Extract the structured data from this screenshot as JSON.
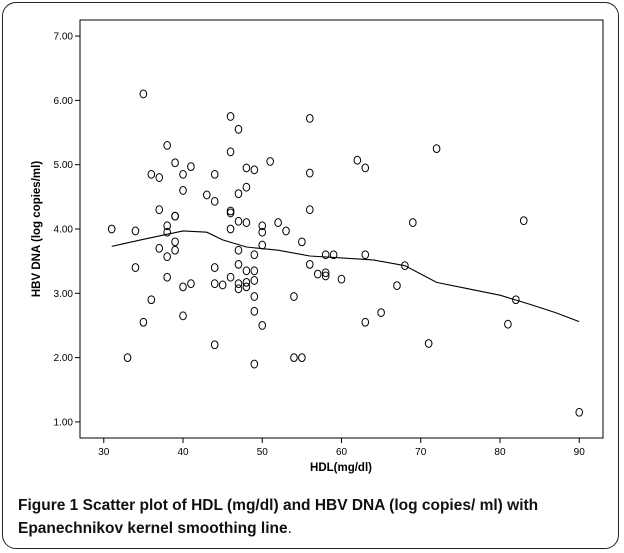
{
  "caption": {
    "label": "Figure 1",
    "text": "Scatter plot of HDL (mg/dl) and HBV DNA (log copies/ ml) with Epanechnikov kernel smoothing line",
    "end": "."
  },
  "chart_data": {
    "type": "scatter",
    "title": "",
    "xlabel": "HDL(mg/dl)",
    "ylabel": "HBV DNA (log copies/ml)",
    "xlim": [
      27,
      93
    ],
    "ylim": [
      0.75,
      7.25
    ],
    "x_ticks": [
      "30",
      "40",
      "50",
      "60",
      "70",
      "80",
      "90"
    ],
    "y_ticks": [
      "1.00",
      "2.00",
      "3.00",
      "4.00",
      "5.00",
      "6.00",
      "7.00"
    ],
    "grid": false,
    "points": [
      [
        31,
        4.0
      ],
      [
        33,
        2.0
      ],
      [
        34,
        3.4
      ],
      [
        34,
        3.97
      ],
      [
        35,
        2.55
      ],
      [
        35,
        6.1
      ],
      [
        36,
        2.9
      ],
      [
        36,
        4.85
      ],
      [
        37,
        3.7
      ],
      [
        37,
        4.3
      ],
      [
        37,
        4.8
      ],
      [
        38,
        3.25
      ],
      [
        38,
        3.57
      ],
      [
        38,
        3.95
      ],
      [
        38,
        4.05
      ],
      [
        38,
        5.3
      ],
      [
        39,
        3.67
      ],
      [
        39,
        3.8
      ],
      [
        39,
        4.2
      ],
      [
        39,
        4.2
      ],
      [
        39,
        5.03
      ],
      [
        40,
        2.65
      ],
      [
        40,
        3.1
      ],
      [
        40,
        4.6
      ],
      [
        40,
        4.85
      ],
      [
        41,
        3.15
      ],
      [
        41,
        4.97
      ],
      [
        43,
        4.53
      ],
      [
        44,
        2.2
      ],
      [
        44,
        3.15
      ],
      [
        44,
        3.4
      ],
      [
        44,
        4.43
      ],
      [
        44,
        4.85
      ],
      [
        45,
        3.13
      ],
      [
        46,
        3.25
      ],
      [
        46,
        4.0
      ],
      [
        46,
        4.25
      ],
      [
        46,
        4.28
      ],
      [
        46,
        5.2
      ],
      [
        46,
        5.75
      ],
      [
        47,
        3.07
      ],
      [
        47,
        3.15
      ],
      [
        47,
        3.45
      ],
      [
        47,
        3.67
      ],
      [
        47,
        4.12
      ],
      [
        47,
        4.55
      ],
      [
        47,
        5.55
      ],
      [
        48,
        3.1
      ],
      [
        48,
        3.17
      ],
      [
        48,
        3.35
      ],
      [
        48,
        4.1
      ],
      [
        48,
        4.65
      ],
      [
        48,
        4.95
      ],
      [
        49,
        1.9
      ],
      [
        49,
        2.72
      ],
      [
        49,
        2.95
      ],
      [
        49,
        3.2
      ],
      [
        49,
        3.35
      ],
      [
        49,
        3.6
      ],
      [
        49,
        4.92
      ],
      [
        50,
        2.5
      ],
      [
        50,
        3.75
      ],
      [
        50,
        3.95
      ],
      [
        50,
        4.05
      ],
      [
        51,
        5.05
      ],
      [
        52,
        4.1
      ],
      [
        53,
        3.97
      ],
      [
        54,
        2.0
      ],
      [
        54,
        2.95
      ],
      [
        55,
        2.0
      ],
      [
        55,
        3.8
      ],
      [
        56,
        3.45
      ],
      [
        56,
        4.3
      ],
      [
        56,
        4.87
      ],
      [
        56,
        5.72
      ],
      [
        57,
        3.3
      ],
      [
        58,
        3.27
      ],
      [
        58,
        3.32
      ],
      [
        58,
        3.6
      ],
      [
        59,
        3.6
      ],
      [
        60,
        3.22
      ],
      [
        62,
        5.07
      ],
      [
        63,
        2.55
      ],
      [
        63,
        3.6
      ],
      [
        63,
        4.95
      ],
      [
        65,
        2.7
      ],
      [
        67,
        3.12
      ],
      [
        68,
        3.43
      ],
      [
        69,
        4.1
      ],
      [
        71,
        2.22
      ],
      [
        72,
        5.25
      ],
      [
        81,
        2.52
      ],
      [
        82,
        2.9
      ],
      [
        83,
        4.13
      ],
      [
        90,
        1.15
      ]
    ],
    "smoothing_line": {
      "method": "Epanechnikov kernel",
      "x": [
        31,
        35,
        40,
        43,
        45,
        48,
        52,
        56,
        60,
        64,
        68,
        72,
        76,
        80,
        84,
        87,
        90
      ],
      "y": [
        3.73,
        3.84,
        3.97,
        3.95,
        3.83,
        3.72,
        3.67,
        3.58,
        3.55,
        3.52,
        3.43,
        3.17,
        3.07,
        2.97,
        2.82,
        2.7,
        2.56
      ]
    }
  }
}
